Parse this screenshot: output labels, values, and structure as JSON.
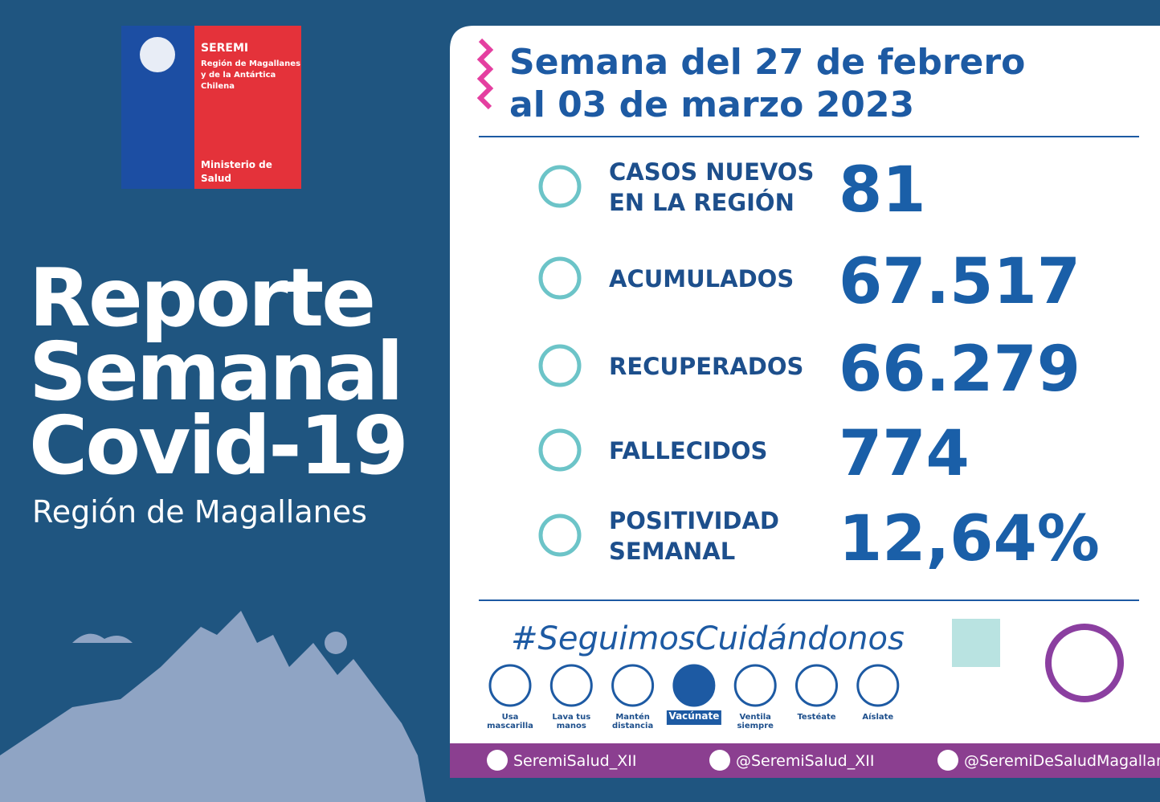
{
  "logo": {
    "name": "SEREMI",
    "region_lines": [
      "Región de Magallanes",
      "y de la Antártica",
      "Chilena"
    ],
    "ministry_lines": [
      "Ministerio de",
      "Salud"
    ]
  },
  "title": {
    "lines": [
      "Reporte",
      "Semanal",
      "Covid-19"
    ],
    "subtitle": "Región de Magallanes"
  },
  "week": {
    "lines": [
      "Semana del 27 de febrero",
      "al 03 de marzo 2023"
    ]
  },
  "stats": [
    {
      "label_lines": [
        "CASOS NUEVOS",
        "EN LA REGIÓN"
      ],
      "value": "81"
    },
    {
      "label_lines": [
        "ACUMULADOS"
      ],
      "value": "67.517"
    },
    {
      "label_lines": [
        "RECUPERADOS"
      ],
      "value": "66.279"
    },
    {
      "label_lines": [
        "FALLECIDOS"
      ],
      "value": "774"
    },
    {
      "label_lines": [
        "POSITIVIDAD",
        "SEMANAL"
      ],
      "value": "12,64%"
    }
  ],
  "hashtag": "#SeguimosCuidándonos",
  "measures": [
    {
      "lines": [
        "Usa",
        "mascarilla"
      ]
    },
    {
      "lines": [
        "Lava tus",
        "manos"
      ]
    },
    {
      "lines": [
        "Mantén",
        "distancia"
      ]
    },
    {
      "lines": [
        "Vacúnate"
      ],
      "highlight": true
    },
    {
      "lines": [
        "Ventila",
        "siempre"
      ]
    },
    {
      "lines": [
        "Testéate"
      ]
    },
    {
      "lines": [
        "Aíslate"
      ]
    }
  ],
  "social": [
    "SeremiSalud_XII",
    "@SeremiSalud_XII",
    "@SeremiDeSaludMagallanes"
  ]
}
